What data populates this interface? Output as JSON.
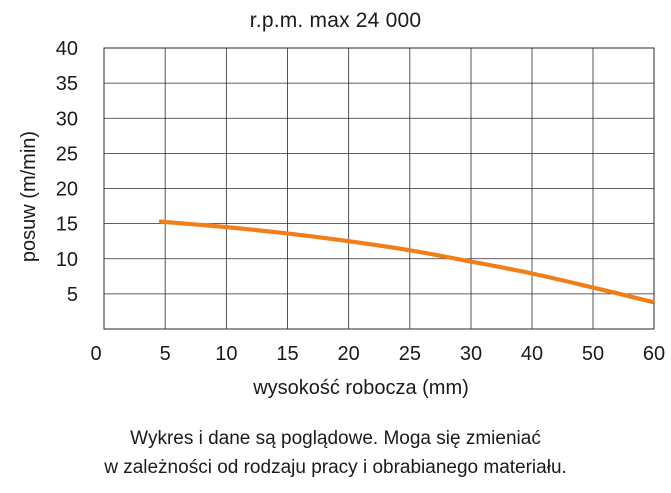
{
  "chart_data": {
    "type": "line",
    "title": "r.p.m. max 24 000",
    "xlabel": "wysokość robocza (mm)",
    "ylabel": "posuw (m/min)",
    "xlim": [
      0,
      60
    ],
    "ylim": [
      0,
      40
    ],
    "x_ticks": [
      0,
      5,
      10,
      15,
      20,
      25,
      30,
      40,
      50,
      60
    ],
    "y_ticks": [
      5,
      10,
      15,
      20,
      25,
      30,
      35,
      40
    ],
    "grid": true,
    "legend": "none",
    "series": [
      {
        "color": "#f07f1a",
        "x": [
          4.5,
          10,
          15,
          20,
          25,
          30,
          40,
          50,
          60
        ],
        "y": [
          15.3,
          14.5,
          13.6,
          12.5,
          11.2,
          9.6,
          7.9,
          5.9,
          3.8
        ]
      }
    ]
  },
  "note": {
    "line1": "Wykres i dane są poglądowe. Moga się zmieniać",
    "line2": "w zależności od rodzaju pracy i obrabianego materiału."
  }
}
